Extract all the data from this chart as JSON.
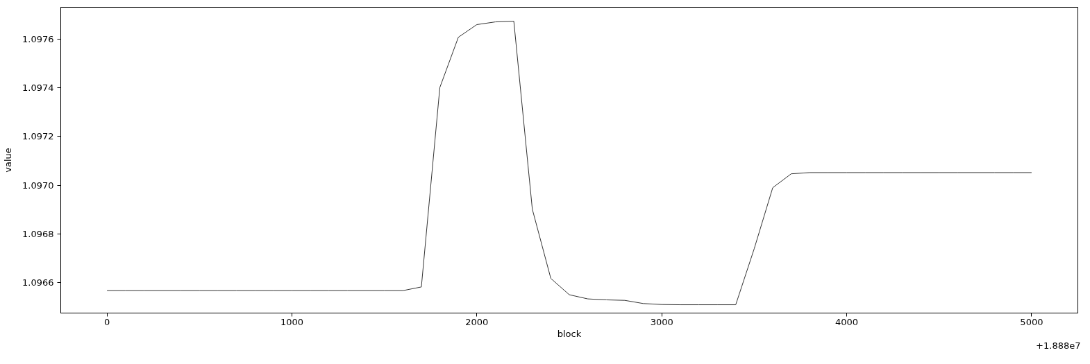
{
  "chart_data": {
    "type": "line",
    "xlabel": "block",
    "ylabel": "value",
    "x": [
      0,
      100,
      200,
      300,
      400,
      500,
      600,
      700,
      800,
      900,
      1000,
      1100,
      1200,
      1300,
      1400,
      1500,
      1600,
      1700,
      1800,
      1900,
      2000,
      2100,
      2200,
      2300,
      2400,
      2500,
      2600,
      2700,
      2800,
      2900,
      3000,
      3100,
      3200,
      3300,
      3400,
      3500,
      3600,
      3700,
      3800,
      3900,
      4000,
      4100,
      4200,
      4300,
      4400,
      4500,
      4600,
      4700,
      4800,
      4900,
      5000
    ],
    "series": [
      {
        "color": "#333333",
        "values": [
          1.096568,
          1.096568,
          1.096568,
          1.096568,
          1.096568,
          1.096568,
          1.096568,
          1.096568,
          1.096568,
          1.096568,
          1.096568,
          1.096568,
          1.096568,
          1.096568,
          1.096568,
          1.096568,
          1.096568,
          1.096583,
          1.097401,
          1.097607,
          1.097659,
          1.09767,
          1.097673,
          1.096902,
          1.096618,
          1.096551,
          1.096534,
          1.09653,
          1.096528,
          1.096515,
          1.096511,
          1.09651,
          1.09651,
          1.09651,
          1.09651,
          1.09674,
          1.09699,
          1.097047,
          1.097052,
          1.097052,
          1.097052,
          1.097052,
          1.097052,
          1.097052,
          1.097052,
          1.097052,
          1.097052,
          1.097052,
          1.097052,
          1.097052,
          1.097052
        ]
      }
    ],
    "xlim": [
      -250,
      5250
    ],
    "xticks": [
      0,
      1000,
      2000,
      3000,
      4000,
      5000
    ],
    "ylim": [
      1.096476,
      1.09773
    ],
    "yticks": [
      1.0966,
      1.0968,
      {
        "value": 1.097,
        "label": "1.0970"
      },
      1.0972,
      1.0974,
      1.0976
    ],
    "annotations": [
      "+1.888e7"
    ]
  }
}
